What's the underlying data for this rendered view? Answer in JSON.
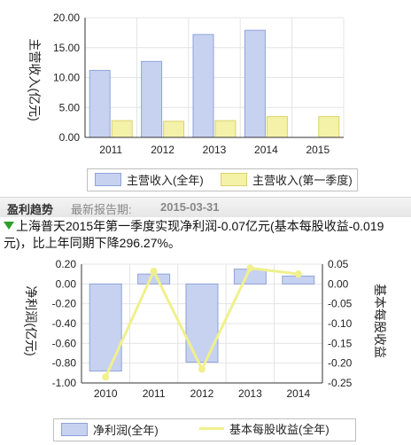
{
  "revenue_chart": {
    "ylabel": "主营收入(亿元)",
    "legend": {
      "annual": "主营收入(全年)",
      "q1": "主营收入(第一季度)"
    }
  },
  "section": {
    "title": "盈利趋势",
    "report_label": "最新报告期:",
    "report_date": "2015-03-31"
  },
  "summary": "上海普天2015年第一季度实现净利润-0.07亿元(基本每股收益-0.019元)，比上年同期下降296.27%。",
  "profit_chart": {
    "ylabel_left": "净利润(亿元)",
    "ylabel_right": "基本每股收益",
    "legend": {
      "profit": "净利润(全年)",
      "eps": "基本每股收益(全年)"
    }
  },
  "colors": {
    "annual_bar": "#c7d2f0",
    "annual_bar_border": "#8fa3d9",
    "q1_bar": "#f4f1a8",
    "q1_bar_border": "#d9d36a",
    "eps_line": "#f0f08c",
    "arrow": "#2e9e2e"
  },
  "chart_data": [
    {
      "type": "bar",
      "categories": [
        "2011",
        "2012",
        "2013",
        "2014",
        "2015"
      ],
      "series": [
        {
          "name": "主营收入(全年)",
          "values": [
            11.2,
            12.7,
            17.2,
            17.9,
            null
          ]
        },
        {
          "name": "主营收入(第一季度)",
          "values": [
            2.8,
            2.7,
            2.8,
            3.5,
            3.5
          ]
        }
      ],
      "yticks": [
        "20.00",
        "15.00",
        "10.00",
        "5.00",
        "0.00"
      ],
      "ylim": [
        0,
        20
      ],
      "ylabel": "主营收入(亿元)",
      "legend": "bottom"
    },
    {
      "type": "bar",
      "categories": [
        "2010",
        "2011",
        "2012",
        "2013",
        "2014"
      ],
      "series": [
        {
          "name": "净利润(全年)",
          "type": "bar",
          "axis": "left",
          "values": [
            -0.88,
            0.1,
            -0.79,
            0.15,
            0.08
          ]
        },
        {
          "name": "基本每股收益(全年)",
          "type": "line",
          "axis": "right",
          "values": [
            -0.235,
            0.032,
            -0.215,
            0.04,
            0.025
          ]
        }
      ],
      "yticks_left": [
        "0.20",
        "0.00",
        "-0.20",
        "-0.40",
        "-0.60",
        "-0.80",
        "-1.00"
      ],
      "ylim_left": [
        -1.0,
        0.2
      ],
      "yticks_right": [
        "0.05",
        "0.00",
        "-0.05",
        "-0.10",
        "-0.15",
        "-0.20",
        "-0.25"
      ],
      "ylim_right": [
        -0.25,
        0.05
      ],
      "ylabel_left": "净利润(亿元)",
      "ylabel_right": "基本每股收益",
      "legend": "bottom"
    }
  ]
}
